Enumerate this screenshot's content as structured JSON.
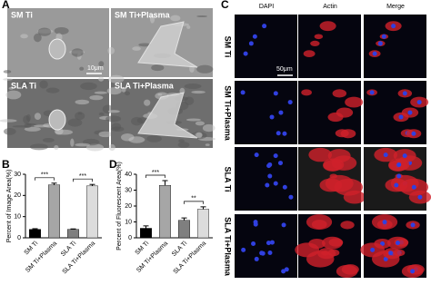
{
  "panel_labels": [
    "A",
    "B",
    "C",
    "D"
  ],
  "sem": {
    "labels": [
      "SM Ti",
      "SM Ti+Plasma",
      "SLA Ti",
      "SLA Ti+Plasma"
    ],
    "scale_bar": "10μm"
  },
  "fluorescence": {
    "columns": [
      "DAPI",
      "Actin",
      "Merge"
    ],
    "rows": [
      "SM Ti",
      "SM Ti+Plasma",
      "SLA Ti",
      "SLA Ti+Plasma"
    ],
    "scale_bar": "50μm"
  },
  "chart_data": [
    {
      "type": "bar",
      "y_label": "Percent of Image Area(%)",
      "categories": [
        "SM Ti",
        "SM Ti+Plasma",
        "SLA Ti",
        "SLA Ti+Plasma"
      ],
      "values": [
        4,
        25,
        4,
        24.5
      ],
      "errors": [
        0.3,
        0.8,
        0.2,
        0.7
      ],
      "colors": [
        "#000000",
        "#a6a6a6",
        "#7f7f7f",
        "#dcdcdc"
      ],
      "annotations": [
        "***",
        "***"
      ],
      "ylim": [
        0,
        30
      ],
      "yticks": [
        0,
        10,
        20,
        30
      ]
    },
    {
      "type": "bar",
      "y_label": "Percent of Fluorescent Area(%)",
      "categories": [
        "SM Ti",
        "SM Ti+Plasma",
        "SLA Ti",
        "SLA Ti+Plasma"
      ],
      "values": [
        6,
        33,
        11,
        18
      ],
      "errors": [
        1.5,
        3,
        1.5,
        1.5
      ],
      "colors": [
        "#000000",
        "#a6a6a6",
        "#7f7f7f",
        "#dcdcdc"
      ],
      "annotations": [
        "***",
        "**"
      ],
      "ylim": [
        0,
        40
      ],
      "yticks": [
        0,
        10,
        20,
        30,
        40
      ]
    }
  ]
}
